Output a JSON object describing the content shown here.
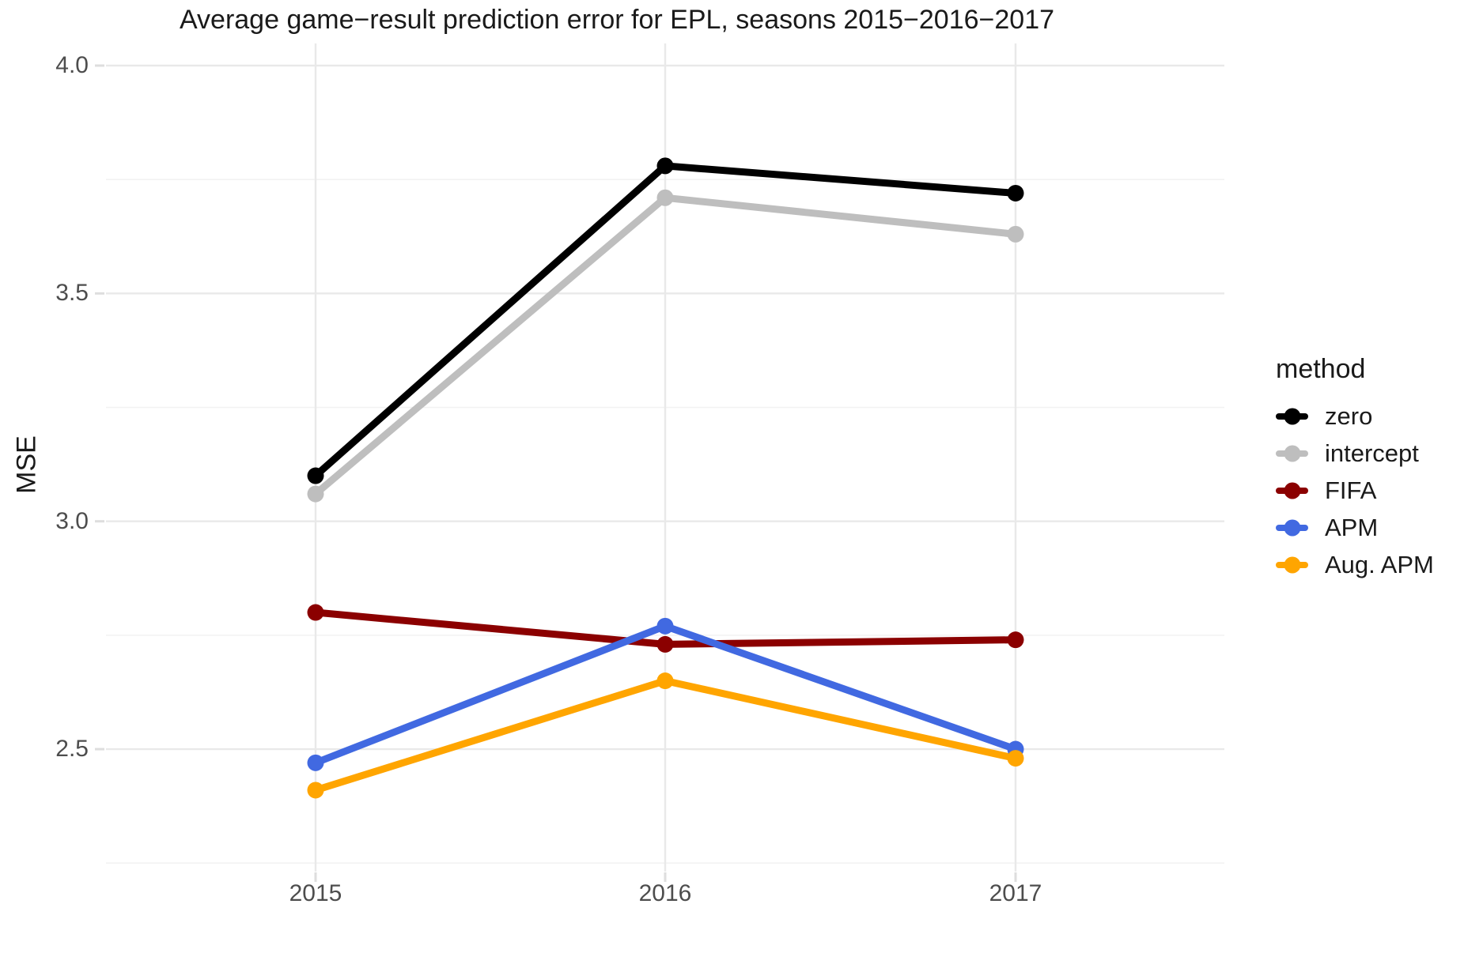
{
  "chart_data": {
    "type": "line",
    "title": "Average game−result prediction error for EPL, seasons 2015−2016−2017",
    "xlabel": "",
    "ylabel": "MSE",
    "legend_title": "method",
    "legend_position": "right",
    "categories": [
      "2015",
      "2016",
      "2017"
    ],
    "yticks": [
      4.0,
      3.5,
      3.0,
      2.5
    ],
    "ytick_labels": [
      "4.0",
      "3.5",
      "3.0",
      "2.5"
    ],
    "y_minor_gridlines": [
      3.75,
      3.25,
      2.75,
      2.25
    ],
    "ylim": [
      2.23,
      4.05
    ],
    "grid": "horizontal major+minor, vertical major only",
    "marker": "point-on-line",
    "series": [
      {
        "name": "zero",
        "color": "#000000",
        "values": [
          3.1,
          3.78,
          3.72
        ]
      },
      {
        "name": "intercept",
        "color": "#bebebe",
        "values": [
          3.06,
          3.71,
          3.63
        ]
      },
      {
        "name": "FIFA",
        "color": "#8b0000",
        "values": [
          2.8,
          2.73,
          2.74
        ]
      },
      {
        "name": "APM",
        "color": "#4169e1",
        "values": [
          2.47,
          2.77,
          2.5
        ]
      },
      {
        "name": "Aug. APM",
        "color": "#ffa500",
        "values": [
          2.41,
          2.65,
          2.48
        ]
      }
    ],
    "colors": {
      "axis_text": "#4d4d4d",
      "gridline_major": "#e9e9e9",
      "gridline_minor": "#f2f2f2",
      "tick_mark": "#dedede",
      "background": "#ffffff"
    }
  }
}
